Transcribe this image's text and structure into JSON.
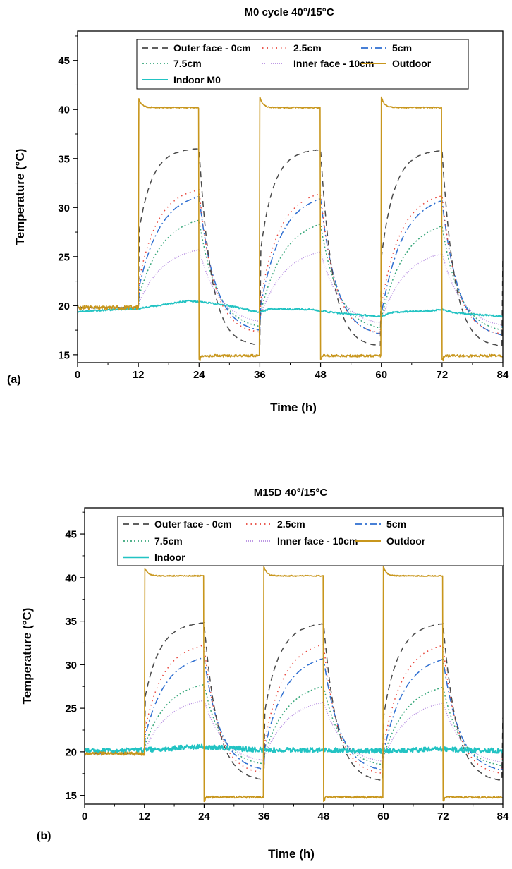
{
  "chart_data": [
    {
      "panel_label": "(a)",
      "type": "line",
      "title": "M0 cycle 40°/15°C",
      "xlabel": "Time (h)",
      "ylabel": "Temperature (°C)",
      "xlim": [
        0,
        84
      ],
      "ylim": [
        14.2,
        48
      ],
      "xticks": [
        0,
        12,
        24,
        36,
        48,
        60,
        72,
        84
      ],
      "yticks": [
        15,
        20,
        25,
        30,
        35,
        40,
        45
      ],
      "grid": false,
      "legend": {
        "placement": "top",
        "columns": 3
      },
      "model": {
        "baseline": 19.8,
        "outdoor_high": 40.2,
        "outdoor_low": 14.9,
        "indoor_points": [
          [
            0,
            19.4
          ],
          [
            12,
            19.7
          ],
          [
            22,
            20.5
          ],
          [
            24,
            20.4
          ],
          [
            30,
            20.0
          ],
          [
            36,
            19.3
          ],
          [
            38,
            19.7
          ],
          [
            46,
            19.6
          ],
          [
            52,
            19.2
          ],
          [
            60,
            18.9
          ],
          [
            62,
            19.3
          ],
          [
            70,
            19.5
          ],
          [
            72,
            19.6
          ],
          [
            74,
            19.3
          ],
          [
            84,
            18.9
          ]
        ]
      },
      "series": [
        {
          "name": "Outer face - 0cm",
          "color": "#4a4a4a",
          "dash": "8,6",
          "sim": "layer",
          "day_peaks": [
            36.0,
            35.9,
            35.8
          ],
          "night_mins": [
            16.0,
            15.9,
            15.9
          ],
          "tau_rise": 2.6,
          "tau_fall": 2.4,
          "jump": 0.45
        },
        {
          "name": "2.5cm",
          "color": "#e8443a",
          "dash": "1.5,5",
          "sim": "layer",
          "day_peaks": [
            31.8,
            31.4,
            31.2
          ],
          "night_mins": [
            17.3,
            17.2,
            17.1
          ],
          "tau_rise": 3.8,
          "tau_fall": 2.9,
          "jump": 0.2
        },
        {
          "name": "5cm",
          "color": "#2f6fd1",
          "dash": "10,4,2,4",
          "sim": "layer",
          "day_peaks": [
            31.1,
            30.9,
            30.7
          ],
          "night_mins": [
            17.5,
            17.1,
            17.0
          ],
          "tau_rise": 4.2,
          "tau_fall": 3.2,
          "jump": 0.15
        },
        {
          "name": "7.5cm",
          "color": "#3aa87c",
          "dash": "2,3",
          "sim": "layer",
          "day_peaks": [
            28.7,
            28.3,
            28.1
          ],
          "night_mins": [
            17.9,
            17.7,
            17.5
          ],
          "tau_rise": 4.6,
          "tau_fall": 3.5,
          "jump": 0.1
        },
        {
          "name": "Inner face - 10cm",
          "color": "#b48ae0",
          "dash": "1,2",
          "sim": "layer",
          "day_peaks": [
            25.7,
            25.5,
            25.3
          ],
          "night_mins": [
            18.4,
            18.2,
            18.0
          ],
          "tau_rise": 4.8,
          "tau_fall": 4.0,
          "jump": 0.05
        },
        {
          "name": "Outdoor",
          "color": "#c8961c",
          "dash": "",
          "sim": "outdoor",
          "width": 1.6
        },
        {
          "name": "Indoor M0",
          "color": "#22c3c3",
          "dash": "",
          "sim": "indoor",
          "width": 1.8,
          "noise": 0.08
        }
      ]
    },
    {
      "panel_label": "(b)",
      "type": "line",
      "title": "M15D 40°/15°C",
      "xlabel": "Time (h)",
      "ylabel": "Temperature (°C)",
      "xlim": [
        0,
        84
      ],
      "ylim": [
        14.0,
        48
      ],
      "xticks": [
        0,
        12,
        24,
        36,
        48,
        60,
        72,
        84
      ],
      "yticks": [
        15,
        20,
        25,
        30,
        35,
        40,
        45
      ],
      "grid": false,
      "legend": {
        "placement": "top",
        "columns": 3
      },
      "model": {
        "baseline": 19.8,
        "outdoor_high": 40.2,
        "outdoor_low": 14.8,
        "indoor_points": [
          [
            0,
            20.1
          ],
          [
            12,
            20.2
          ],
          [
            24,
            20.6
          ],
          [
            36,
            20.2
          ],
          [
            48,
            20.2
          ],
          [
            60,
            20.1
          ],
          [
            72,
            20.3
          ],
          [
            84,
            20.1
          ]
        ]
      },
      "series": [
        {
          "name": "Outer face - 0cm",
          "color": "#4a4a4a",
          "dash": "8,6",
          "sim": "layer",
          "day_peaks": [
            34.8,
            34.7,
            34.7
          ],
          "night_mins": [
            16.8,
            16.7,
            16.7
          ],
          "tau_rise": 3.0,
          "tau_fall": 2.7,
          "jump": 0.4
        },
        {
          "name": "2.5cm",
          "color": "#e8443a",
          "dash": "1.5,5",
          "sim": "layer",
          "day_peaks": [
            32.2,
            32.3,
            32.2
          ],
          "night_mins": [
            17.6,
            17.5,
            17.5
          ],
          "tau_rise": 3.8,
          "tau_fall": 2.9,
          "jump": 0.2
        },
        {
          "name": "5cm",
          "color": "#2f6fd1",
          "dash": "10,4,2,4",
          "sim": "layer",
          "day_peaks": [
            30.8,
            30.7,
            30.6
          ],
          "night_mins": [
            18.0,
            17.9,
            17.9
          ],
          "tau_rise": 4.2,
          "tau_fall": 3.3,
          "jump": 0.15
        },
        {
          "name": "7.5cm",
          "color": "#3aa87c",
          "dash": "2,3",
          "sim": "layer",
          "day_peaks": [
            27.7,
            27.5,
            27.4
          ],
          "night_mins": [
            18.6,
            18.5,
            18.4
          ],
          "tau_rise": 4.6,
          "tau_fall": 3.6,
          "jump": 0.1
        },
        {
          "name": "Inner face - 10cm",
          "color": "#b48ae0",
          "dash": "1,2",
          "sim": "layer",
          "day_peaks": [
            25.9,
            25.7,
            25.6
          ],
          "night_mins": [
            19.0,
            18.9,
            18.8
          ],
          "tau_rise": 4.8,
          "tau_fall": 4.0,
          "jump": 0.05
        },
        {
          "name": "Outdoor",
          "color": "#c8961c",
          "dash": "",
          "sim": "outdoor",
          "width": 1.6
        },
        {
          "name": "Indoor",
          "color": "#22c3c3",
          "dash": "",
          "sim": "indoor",
          "width": 2.2,
          "noise": 0.28
        }
      ]
    }
  ]
}
